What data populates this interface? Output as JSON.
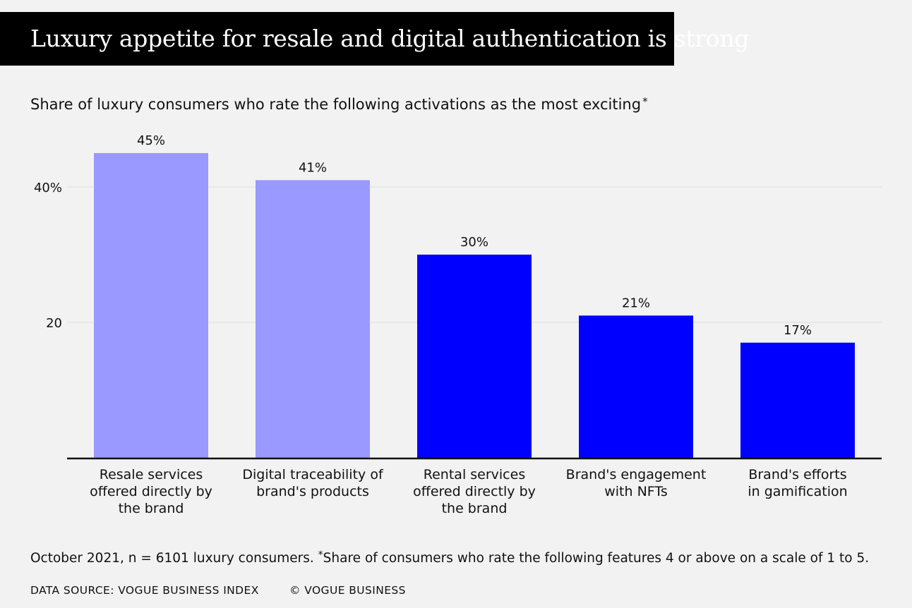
{
  "header": {
    "title": "Luxury appetite for resale and digital authentication is strong",
    "subtitle": "Share of luxury consumers who rate the following activations as the most exciting",
    "subtitle_marker": "*"
  },
  "chart_data": {
    "type": "bar",
    "title": "Luxury appetite for resale and digital authentication is strong",
    "subtitle": "Share of luxury consumers who rate the following activations as the most exciting*",
    "xlabel": "",
    "ylabel": "",
    "ylim": [
      0,
      50
    ],
    "yticks": [
      20,
      40
    ],
    "ytick_labels": [
      "20",
      "40%"
    ],
    "grid": true,
    "categories": [
      [
        "Resale services",
        "offered directly by",
        "the brand"
      ],
      [
        "Digital traceability of",
        "brand's products"
      ],
      [
        "Rental services",
        "offered directly by",
        "the brand"
      ],
      [
        "Brand's engagement",
        "with NFTs"
      ],
      [
        "Brand's efforts",
        "in gamification"
      ]
    ],
    "values": [
      45,
      41,
      30,
      21,
      17
    ],
    "data_labels": [
      "45%",
      "41%",
      "30%",
      "21%",
      "17%"
    ],
    "bar_colors": [
      "#9999ff",
      "#9999ff",
      "#0000ff",
      "#0000ff",
      "#0000ff"
    ]
  },
  "colors": {
    "background": "#f2f2f2",
    "title_bar": "#000000",
    "title_text": "#ffffff",
    "highlight_bar": "#9999ff",
    "standard_bar": "#0000ff",
    "gridline": "#dddddd",
    "axis": "#111111"
  },
  "footer": {
    "note_prefix": "October 2021, n = 6101 luxury consumers. ",
    "note_marker": "*",
    "note_text": "Share of consumers who rate the following features 4 or above on a scale of 1 to 5.",
    "source": "DATA SOURCE: VOGUE BUSINESS INDEX",
    "copyright": "© VOGUE BUSINESS"
  }
}
